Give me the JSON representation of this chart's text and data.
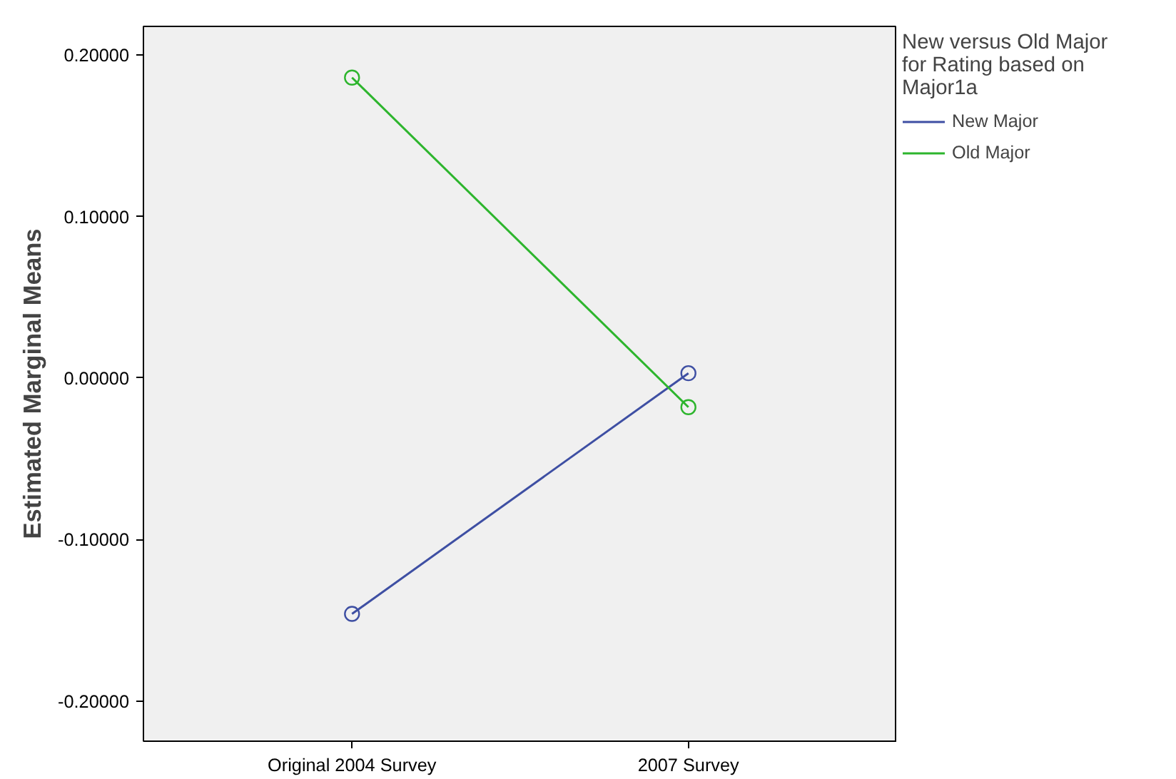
{
  "chart_data": {
    "type": "line",
    "ylabel": "Estimated Marginal Means",
    "legend_title": "New versus Old Major for Rating based on Major1a",
    "categories": [
      "Original 2004 Survey",
      "2007 Survey"
    ],
    "series": [
      {
        "name": "New Major",
        "color": "#3e4fa3",
        "values": [
          -0.146,
          0.003
        ]
      },
      {
        "name": "Old Major",
        "color": "#2db52d",
        "values": [
          0.186,
          -0.018
        ]
      }
    ],
    "ylim": [
      -0.2248,
      0.2177
    ],
    "yticks": [
      {
        "value": -0.2,
        "label": "-0.20000"
      },
      {
        "value": -0.1,
        "label": "-0.10000"
      },
      {
        "value": 0,
        "label": "0.00000"
      },
      {
        "value": 0.1,
        "label": "0.10000"
      },
      {
        "value": 0.2,
        "label": "0.20000"
      }
    ],
    "grid": false,
    "legend": "top right",
    "marker": "circle",
    "line_style": "solid"
  }
}
